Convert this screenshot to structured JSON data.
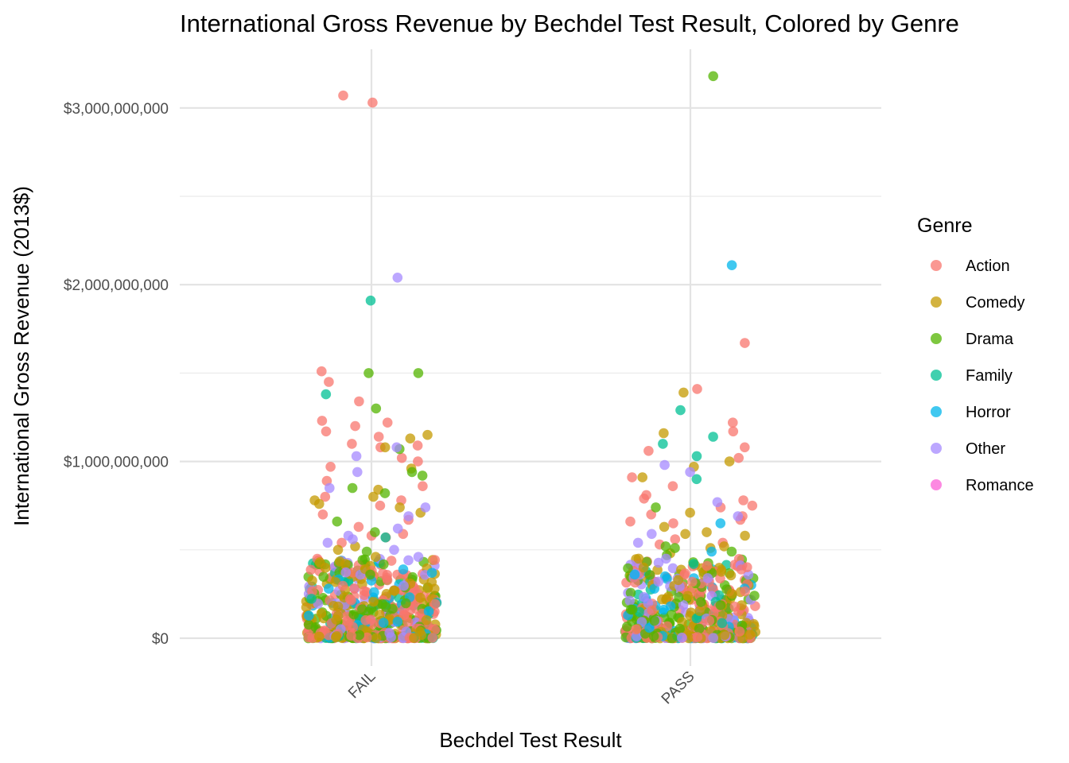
{
  "chart_data": {
    "type": "scatter",
    "title": "International Gross Revenue by Bechdel Test Result, Colored by Genre",
    "xlabel": "Bechdel Test Result",
    "ylabel": "International Gross Revenue (2013$)",
    "categories": [
      "FAIL",
      "PASS"
    ],
    "ylim": [
      -150000000,
      3330000000
    ],
    "y_ticks": [
      0,
      1000000000,
      2000000000,
      3000000000
    ],
    "y_tick_labels": [
      "$0",
      "$1,000,000,000",
      "$2,000,000,000",
      "$3,000,000,000"
    ],
    "grid": true,
    "legend": {
      "title": "Genre",
      "placement": "right",
      "entries": [
        {
          "name": "Action",
          "color": "#F8766D"
        },
        {
          "name": "Comedy",
          "color": "#C49A00"
        },
        {
          "name": "Drama",
          "color": "#53B400"
        },
        {
          "name": "Family",
          "color": "#00C094"
        },
        {
          "name": "Horror",
          "color": "#00B6EB"
        },
        {
          "name": "Other",
          "color": "#A58AFF"
        },
        {
          "name": "Romance",
          "color": "#FB61D7"
        }
      ]
    },
    "series": [
      {
        "name": "Action",
        "points": [
          {
            "x": "FAIL",
            "y": 3070000000
          },
          {
            "x": "FAIL",
            "y": 3030000000
          },
          {
            "x": "FAIL",
            "y": 1510000000
          },
          {
            "x": "FAIL",
            "y": 1450000000
          },
          {
            "x": "FAIL",
            "y": 1340000000
          },
          {
            "x": "FAIL",
            "y": 1230000000
          },
          {
            "x": "FAIL",
            "y": 1220000000
          },
          {
            "x": "FAIL",
            "y": 1200000000
          },
          {
            "x": "FAIL",
            "y": 1170000000
          },
          {
            "x": "FAIL",
            "y": 1140000000
          },
          {
            "x": "FAIL",
            "y": 1100000000
          },
          {
            "x": "FAIL",
            "y": 1090000000
          },
          {
            "x": "FAIL",
            "y": 1080000000
          },
          {
            "x": "FAIL",
            "y": 1020000000
          },
          {
            "x": "FAIL",
            "y": 1000000000
          },
          {
            "x": "FAIL",
            "y": 970000000
          },
          {
            "x": "FAIL",
            "y": 890000000
          },
          {
            "x": "FAIL",
            "y": 860000000
          },
          {
            "x": "FAIL",
            "y": 800000000
          },
          {
            "x": "FAIL",
            "y": 780000000
          },
          {
            "x": "FAIL",
            "y": 750000000
          },
          {
            "x": "FAIL",
            "y": 700000000
          },
          {
            "x": "FAIL",
            "y": 670000000
          },
          {
            "x": "FAIL",
            "y": 630000000
          },
          {
            "x": "FAIL",
            "y": 590000000
          },
          {
            "x": "FAIL",
            "y": 580000000
          },
          {
            "x": "FAIL",
            "y": 570000000
          },
          {
            "x": "FAIL",
            "y": 540000000
          },
          {
            "x": "PASS",
            "y": 1670000000
          },
          {
            "x": "PASS",
            "y": 1410000000
          },
          {
            "x": "PASS",
            "y": 1220000000
          },
          {
            "x": "PASS",
            "y": 1170000000
          },
          {
            "x": "PASS",
            "y": 1080000000
          },
          {
            "x": "PASS",
            "y": 1060000000
          },
          {
            "x": "PASS",
            "y": 1020000000
          },
          {
            "x": "PASS",
            "y": 910000000
          },
          {
            "x": "PASS",
            "y": 860000000
          },
          {
            "x": "PASS",
            "y": 810000000
          },
          {
            "x": "PASS",
            "y": 790000000
          },
          {
            "x": "PASS",
            "y": 780000000
          },
          {
            "x": "PASS",
            "y": 750000000
          },
          {
            "x": "PASS",
            "y": 740000000
          },
          {
            "x": "PASS",
            "y": 700000000
          },
          {
            "x": "PASS",
            "y": 690000000
          },
          {
            "x": "PASS",
            "y": 670000000
          },
          {
            "x": "PASS",
            "y": 660000000
          },
          {
            "x": "PASS",
            "y": 650000000
          },
          {
            "x": "PASS",
            "y": 560000000
          },
          {
            "x": "PASS",
            "y": 540000000
          },
          {
            "x": "PASS",
            "y": 530000000
          }
        ]
      },
      {
        "name": "Comedy",
        "points": [
          {
            "x": "FAIL",
            "y": 1150000000
          },
          {
            "x": "FAIL",
            "y": 1130000000
          },
          {
            "x": "FAIL",
            "y": 1080000000
          },
          {
            "x": "FAIL",
            "y": 960000000
          },
          {
            "x": "FAIL",
            "y": 840000000
          },
          {
            "x": "FAIL",
            "y": 800000000
          },
          {
            "x": "FAIL",
            "y": 780000000
          },
          {
            "x": "FAIL",
            "y": 760000000
          },
          {
            "x": "FAIL",
            "y": 740000000
          },
          {
            "x": "FAIL",
            "y": 710000000
          },
          {
            "x": "FAIL",
            "y": 520000000
          },
          {
            "x": "FAIL",
            "y": 500000000
          },
          {
            "x": "FAIL",
            "y": 460000000
          },
          {
            "x": "FAIL",
            "y": 430000000
          },
          {
            "x": "PASS",
            "y": 1390000000
          },
          {
            "x": "PASS",
            "y": 1160000000
          },
          {
            "x": "PASS",
            "y": 1000000000
          },
          {
            "x": "PASS",
            "y": 970000000
          },
          {
            "x": "PASS",
            "y": 910000000
          },
          {
            "x": "PASS",
            "y": 710000000
          },
          {
            "x": "PASS",
            "y": 630000000
          },
          {
            "x": "PASS",
            "y": 600000000
          },
          {
            "x": "PASS",
            "y": 590000000
          },
          {
            "x": "PASS",
            "y": 580000000
          },
          {
            "x": "PASS",
            "y": 520000000
          },
          {
            "x": "PASS",
            "y": 510000000
          },
          {
            "x": "PASS",
            "y": 480000000
          },
          {
            "x": "PASS",
            "y": 450000000
          },
          {
            "x": "PASS",
            "y": 400000000
          }
        ]
      },
      {
        "name": "Drama",
        "points": [
          {
            "x": "FAIL",
            "y": 1500000000
          },
          {
            "x": "FAIL",
            "y": 1500000000
          },
          {
            "x": "FAIL",
            "y": 1300000000
          },
          {
            "x": "FAIL",
            "y": 1070000000
          },
          {
            "x": "FAIL",
            "y": 940000000
          },
          {
            "x": "FAIL",
            "y": 920000000
          },
          {
            "x": "FAIL",
            "y": 850000000
          },
          {
            "x": "FAIL",
            "y": 820000000
          },
          {
            "x": "FAIL",
            "y": 660000000
          },
          {
            "x": "FAIL",
            "y": 600000000
          },
          {
            "x": "FAIL",
            "y": 490000000
          },
          {
            "x": "FAIL",
            "y": 360000000
          },
          {
            "x": "PASS",
            "y": 3180000000
          },
          {
            "x": "PASS",
            "y": 740000000
          },
          {
            "x": "PASS",
            "y": 520000000
          },
          {
            "x": "PASS",
            "y": 510000000
          },
          {
            "x": "PASS",
            "y": 490000000
          },
          {
            "x": "PASS",
            "y": 470000000
          },
          {
            "x": "PASS",
            "y": 430000000
          }
        ]
      },
      {
        "name": "Family",
        "points": [
          {
            "x": "FAIL",
            "y": 1910000000
          },
          {
            "x": "FAIL",
            "y": 1380000000
          },
          {
            "x": "FAIL",
            "y": 570000000
          },
          {
            "x": "PASS",
            "y": 1290000000
          },
          {
            "x": "PASS",
            "y": 1140000000
          },
          {
            "x": "PASS",
            "y": 1100000000
          },
          {
            "x": "PASS",
            "y": 1030000000
          },
          {
            "x": "PASS",
            "y": 900000000
          },
          {
            "x": "PASS",
            "y": 420000000
          }
        ]
      },
      {
        "name": "Horror",
        "points": [
          {
            "x": "FAIL",
            "y": 370000000
          },
          {
            "x": "FAIL",
            "y": 280000000
          },
          {
            "x": "FAIL",
            "y": 260000000
          },
          {
            "x": "PASS",
            "y": 2110000000
          },
          {
            "x": "PASS",
            "y": 650000000
          },
          {
            "x": "PASS",
            "y": 490000000
          },
          {
            "x": "PASS",
            "y": 360000000
          },
          {
            "x": "PASS",
            "y": 350000000
          },
          {
            "x": "PASS",
            "y": 280000000
          }
        ]
      },
      {
        "name": "Other",
        "points": [
          {
            "x": "FAIL",
            "y": 2040000000
          },
          {
            "x": "FAIL",
            "y": 1080000000
          },
          {
            "x": "FAIL",
            "y": 1030000000
          },
          {
            "x": "FAIL",
            "y": 940000000
          },
          {
            "x": "FAIL",
            "y": 850000000
          },
          {
            "x": "FAIL",
            "y": 740000000
          },
          {
            "x": "FAIL",
            "y": 690000000
          },
          {
            "x": "FAIL",
            "y": 620000000
          },
          {
            "x": "FAIL",
            "y": 580000000
          },
          {
            "x": "FAIL",
            "y": 560000000
          },
          {
            "x": "FAIL",
            "y": 540000000
          },
          {
            "x": "FAIL",
            "y": 500000000
          },
          {
            "x": "FAIL",
            "y": 460000000
          },
          {
            "x": "PASS",
            "y": 980000000
          },
          {
            "x": "PASS",
            "y": 940000000
          },
          {
            "x": "PASS",
            "y": 770000000
          },
          {
            "x": "PASS",
            "y": 690000000
          },
          {
            "x": "PASS",
            "y": 590000000
          },
          {
            "x": "PASS",
            "y": 540000000
          },
          {
            "x": "PASS",
            "y": 450000000
          },
          {
            "x": "PASS",
            "y": 340000000
          },
          {
            "x": "PASS",
            "y": 320000000
          }
        ]
      },
      {
        "name": "Romance",
        "points": []
      }
    ]
  }
}
